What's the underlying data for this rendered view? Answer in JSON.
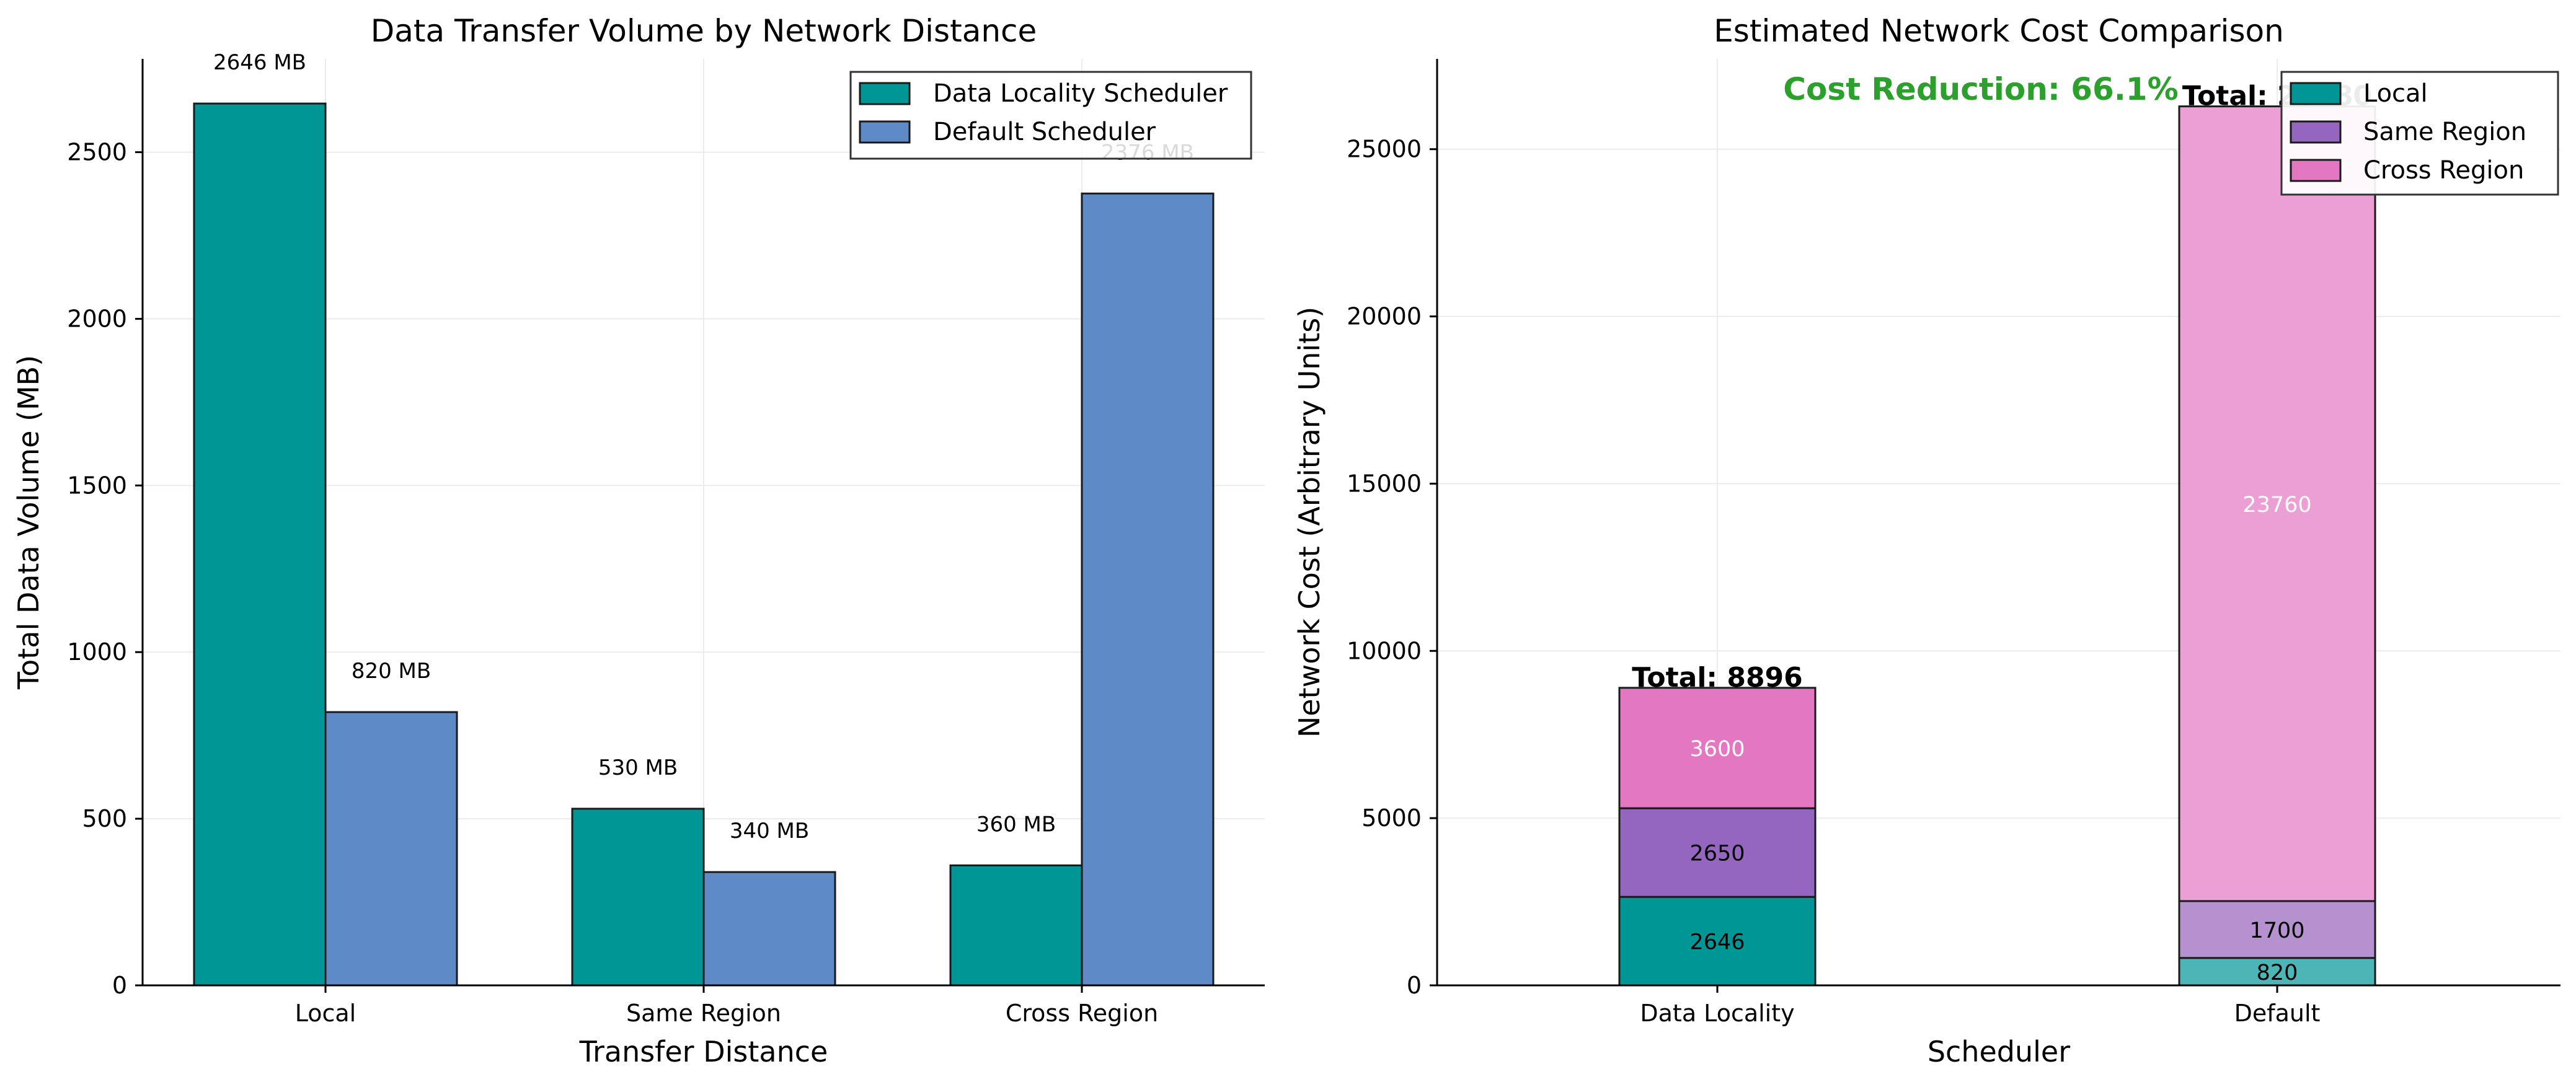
{
  "chart_data": [
    {
      "type": "bar",
      "title": "Data Transfer Volume by Network Distance",
      "xlabel": "Transfer Distance",
      "ylabel": "Total Data Volume (MB)",
      "ylim": [
        0,
        2780
      ],
      "yticks": [
        0,
        500,
        1000,
        1500,
        2000,
        2500
      ],
      "grid": true,
      "legend_position": "top-right",
      "categories": [
        "Local",
        "Same Region",
        "Cross Region"
      ],
      "series": [
        {
          "name": "Data Locality Scheduler",
          "color": "#009696",
          "values": [
            2646,
            530,
            360
          ],
          "labels": [
            "2646 MB",
            "530 MB",
            "360 MB"
          ]
        },
        {
          "name": "Default Scheduler",
          "color": "#5f8ac8",
          "values": [
            820,
            340,
            2376
          ],
          "labels": [
            "820 MB",
            "340 MB",
            "2376 MB"
          ]
        }
      ]
    },
    {
      "type": "bar",
      "stacked": true,
      "title": "Estimated Network Cost Comparison",
      "xlabel": "Scheduler",
      "ylabel": "Network Cost (Arbitrary Units)",
      "ylim": [
        0,
        27700
      ],
      "yticks": [
        0,
        5000,
        10000,
        15000,
        20000,
        25000
      ],
      "grid": true,
      "legend_position": "top-right",
      "categories": [
        "Data Locality",
        "Default"
      ],
      "series": [
        {
          "name": "Local",
          "values": [
            2646,
            820
          ],
          "colors": [
            "#009696",
            "#4db5b5"
          ],
          "labels": [
            "2646",
            "820"
          ],
          "label_color": "#000000"
        },
        {
          "name": "Same Region",
          "values": [
            2650,
            1700
          ],
          "colors": [
            "#9566bf",
            "#b591d0"
          ],
          "labels": [
            "2650",
            "1700"
          ],
          "label_color": "#000000"
        },
        {
          "name": "Cross Region",
          "values": [
            3600,
            23760
          ],
          "colors": [
            "#e377c2",
            "#eb9fd4"
          ],
          "labels": [
            "3600",
            "23760"
          ],
          "label_color": "#ffffff"
        }
      ],
      "totals": [
        "Total: 8896",
        "Total: 26280"
      ],
      "annotation": {
        "text": "Cost Reduction: 66.1%",
        "color": "#2ca02c"
      }
    }
  ]
}
